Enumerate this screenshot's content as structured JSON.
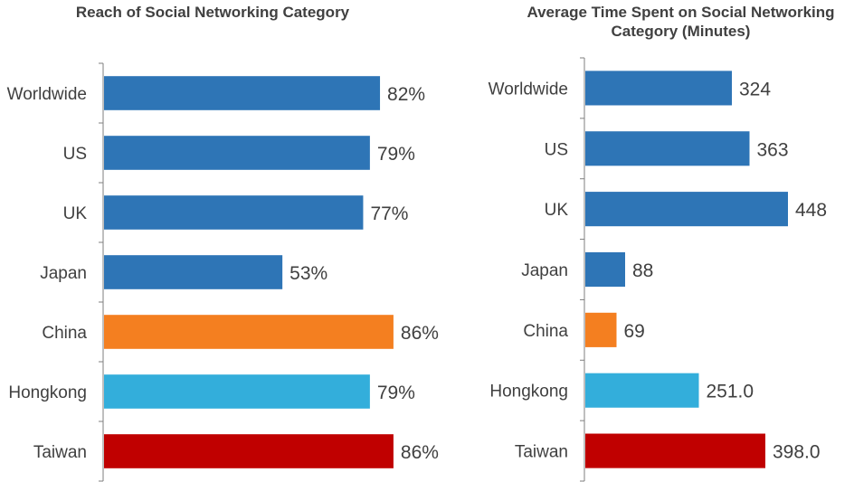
{
  "chart_data": [
    {
      "type": "bar",
      "orientation": "horizontal",
      "title": "Reach of Social Networking Category",
      "categories": [
        "Worldwide",
        "US",
        "UK",
        "Japan",
        "China",
        "Hongkong",
        "Taiwan"
      ],
      "values": [
        82,
        79,
        77,
        53,
        86,
        79,
        86
      ],
      "value_labels": [
        "82%",
        "79%",
        "77%",
        "53%",
        "86%",
        "79%",
        "86%"
      ],
      "colors": [
        "#2E75B6",
        "#2E75B6",
        "#2E75B6",
        "#2E75B6",
        "#F47F20",
        "#33AEDB",
        "#C00000"
      ],
      "xlim": [
        0,
        100
      ],
      "grid": false
    },
    {
      "type": "bar",
      "orientation": "horizontal",
      "title": "Average Time Spent on Social Networking Category (Minutes)",
      "categories": [
        "Worldwide",
        "US",
        "UK",
        "Japan",
        "China",
        "Hongkong",
        "Taiwan"
      ],
      "values": [
        324,
        363,
        448,
        88,
        69,
        251.0,
        398.0
      ],
      "value_labels": [
        "324",
        "363",
        "448",
        "88",
        "69",
        "251.0",
        "398.0"
      ],
      "colors": [
        "#2E75B6",
        "#2E75B6",
        "#2E75B6",
        "#2E75B6",
        "#F47F20",
        "#33AEDB",
        "#C00000"
      ],
      "xlim": [
        0,
        500
      ],
      "grid": false
    }
  ]
}
